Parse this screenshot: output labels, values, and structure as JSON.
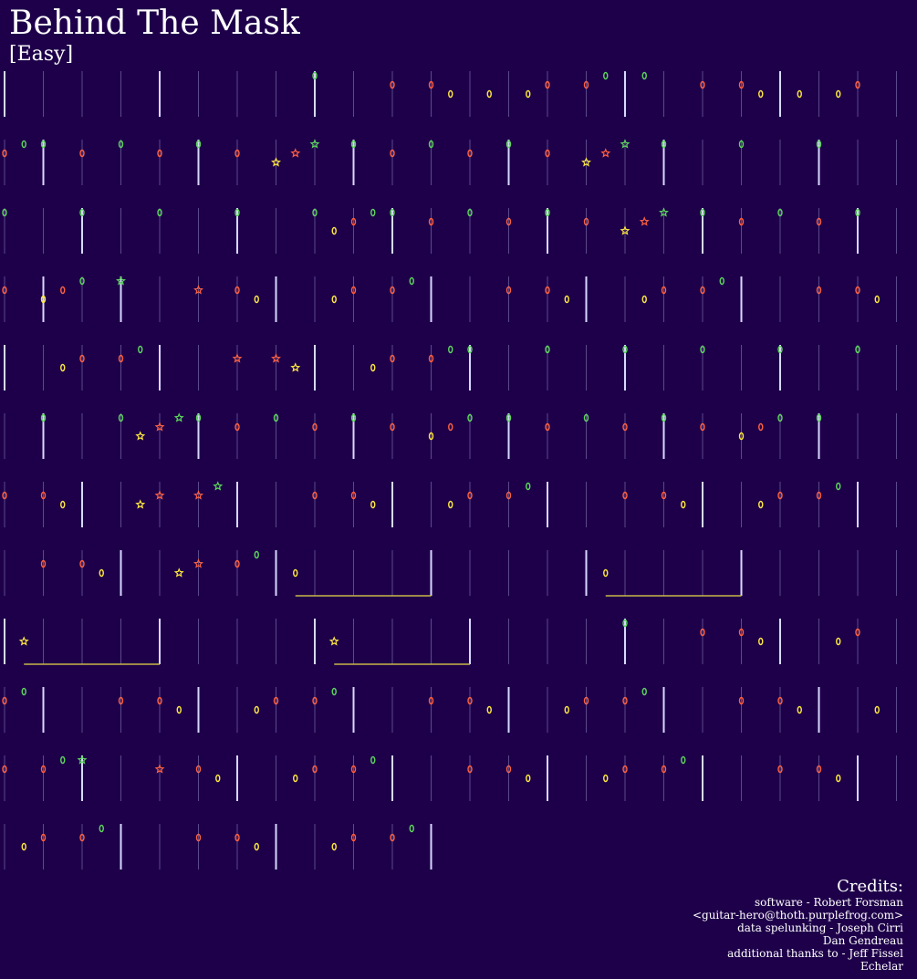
{
  "song": {
    "title": "Behind The Mask",
    "difficulty": "[Easy]"
  },
  "colors": {
    "background": "#1e004a",
    "beat_line": "#5a4a8a",
    "measure_line": "#d8d8ff",
    "green": "#5cd65c",
    "red": "#ff6040",
    "yellow": "#ffe840",
    "sustain": "#c8b848"
  },
  "credits": {
    "heading": "Credits:",
    "lines": [
      "software - Robert Forsman",
      "<guitar-hero@thoth.purplefrog.com>",
      "data spelunking - Joseph Cirri",
      "Dan Gendreau",
      "additional thanks to - Jeff Fissel",
      "Echelar"
    ]
  },
  "note_legend": {
    "green": "G",
    "red": "R",
    "yellow": "Y"
  },
  "chart_data": {
    "type": "note-chart",
    "beats_per_row": 24,
    "beats_per_measure": 4,
    "total_beats": 268,
    "rows": [
      {
        "measure_beats": [
          0,
          4,
          8,
          16,
          20,
          24
        ],
        "notes": [
          [
            "G",
            8
          ],
          [
            "R",
            10
          ],
          [
            "R",
            11
          ],
          [
            "Y",
            11.5
          ],
          [
            "Y",
            12.5
          ],
          [
            "Y",
            13.5
          ],
          [
            "R",
            14
          ],
          [
            "G",
            15.5
          ],
          [
            "R",
            15
          ],
          [
            "G",
            16.5
          ],
          [
            "R",
            18
          ],
          [
            "R",
            19
          ],
          [
            "Y",
            19.5
          ],
          [
            "Y",
            20.5
          ],
          [
            "Y",
            21.5
          ],
          [
            "R",
            22
          ]
        ],
        "sustains": []
      },
      {
        "measure_beats": [
          1,
          5,
          9,
          13,
          17,
          21
        ],
        "notes": [
          [
            "R",
            0
          ],
          [
            "G",
            0.5
          ],
          [
            "G",
            1
          ],
          [
            "R",
            2
          ],
          [
            "G",
            3
          ],
          [
            "R",
            4
          ],
          [
            "G",
            5
          ],
          [
            "R",
            6
          ],
          [
            "Y",
            7
          ],
          [
            "R",
            7.5
          ],
          [
            "G",
            8
          ],
          [
            "G",
            9
          ],
          [
            "R",
            10
          ],
          [
            "G",
            11
          ],
          [
            "R",
            12
          ],
          [
            "G",
            13
          ],
          [
            "R",
            14
          ],
          [
            "Y",
            15
          ],
          [
            "R",
            15.5
          ],
          [
            "G",
            16
          ],
          [
            "G",
            17
          ],
          [
            "G",
            19
          ],
          [
            "G",
            21
          ]
        ],
        "sustains": [],
        "stars": [
          7,
          7.5,
          8,
          15,
          15.5,
          16
        ]
      },
      {
        "measure_beats": [
          2,
          6,
          10,
          14,
          18,
          22
        ],
        "notes": [
          [
            "G",
            0
          ],
          [
            "G",
            2
          ],
          [
            "G",
            4
          ],
          [
            "G",
            6
          ],
          [
            "G",
            8
          ],
          [
            "Y",
            8.5
          ],
          [
            "R",
            9
          ],
          [
            "G",
            9.5
          ],
          [
            "G",
            10
          ],
          [
            "R",
            11
          ],
          [
            "G",
            12
          ],
          [
            "R",
            13
          ],
          [
            "G",
            14
          ],
          [
            "R",
            15
          ],
          [
            "Y",
            16
          ],
          [
            "R",
            16.5
          ],
          [
            "G",
            17
          ],
          [
            "G",
            18
          ],
          [
            "R",
            19
          ],
          [
            "G",
            20
          ],
          [
            "R",
            21
          ],
          [
            "G",
            22
          ]
        ],
        "sustains": [],
        "stars": [
          16,
          16.5,
          17
        ]
      },
      {
        "measure_beats": [
          1,
          3,
          7,
          11,
          15,
          19
        ],
        "notes": [
          [
            "R",
            0
          ],
          [
            "Y",
            1
          ],
          [
            "R",
            1.5
          ],
          [
            "G",
            2
          ],
          [
            "G",
            3
          ],
          [
            "R",
            5
          ],
          [
            "R",
            6
          ],
          [
            "Y",
            6.5
          ],
          [
            "Y",
            8.5
          ],
          [
            "R",
            9
          ],
          [
            "R",
            10
          ],
          [
            "G",
            10.5
          ],
          [
            "R",
            13
          ],
          [
            "R",
            14
          ],
          [
            "Y",
            14.5
          ],
          [
            "Y",
            16.5
          ],
          [
            "R",
            17
          ],
          [
            "R",
            18
          ],
          [
            "G",
            18.5
          ],
          [
            "R",
            21
          ],
          [
            "R",
            22
          ],
          [
            "Y",
            22.5
          ]
        ],
        "sustains": [],
        "stars": [
          3,
          5
        ]
      },
      {
        "measure_beats": [
          0,
          4,
          8,
          12,
          16,
          20
        ],
        "notes": [
          [
            "Y",
            1.5
          ],
          [
            "R",
            2
          ],
          [
            "R",
            3
          ],
          [
            "G",
            3.5
          ],
          [
            "R",
            6
          ],
          [
            "R",
            7
          ],
          [
            "Y",
            7.5
          ],
          [
            "Y",
            9.5
          ],
          [
            "R",
            10
          ],
          [
            "R",
            11
          ],
          [
            "G",
            11.5
          ],
          [
            "G",
            12
          ],
          [
            "G",
            14
          ],
          [
            "G",
            16
          ],
          [
            "G",
            18
          ],
          [
            "G",
            20
          ],
          [
            "G",
            22
          ]
        ],
        "sustains": [],
        "stars": [
          6,
          7,
          7.5
        ]
      },
      {
        "measure_beats": [
          1,
          5,
          9,
          13,
          17,
          21
        ],
        "notes": [
          [
            "G",
            1
          ],
          [
            "G",
            3
          ],
          [
            "Y",
            3.5
          ],
          [
            "R",
            4
          ],
          [
            "G",
            4.5
          ],
          [
            "G",
            5
          ],
          [
            "R",
            6
          ],
          [
            "G",
            7
          ],
          [
            "R",
            8
          ],
          [
            "G",
            9
          ],
          [
            "R",
            10
          ],
          [
            "Y",
            11
          ],
          [
            "R",
            11.5
          ],
          [
            "G",
            12
          ],
          [
            "G",
            13
          ],
          [
            "R",
            14
          ],
          [
            "G",
            15
          ],
          [
            "R",
            16
          ],
          [
            "G",
            17
          ],
          [
            "R",
            18
          ],
          [
            "Y",
            19
          ],
          [
            "R",
            19.5
          ],
          [
            "G",
            20
          ],
          [
            "G",
            21
          ]
        ],
        "sustains": [],
        "stars": [
          3.5,
          4,
          4.5
        ]
      },
      {
        "measure_beats": [
          2,
          6,
          10,
          14,
          18,
          22
        ],
        "notes": [
          [
            "R",
            0
          ],
          [
            "R",
            1
          ],
          [
            "Y",
            1.5
          ],
          [
            "Y",
            3.5
          ],
          [
            "R",
            4
          ],
          [
            "R",
            5
          ],
          [
            "G",
            5.5
          ],
          [
            "R",
            8
          ],
          [
            "R",
            9
          ],
          [
            "Y",
            9.5
          ],
          [
            "Y",
            11.5
          ],
          [
            "R",
            12
          ],
          [
            "R",
            13
          ],
          [
            "G",
            13.5
          ],
          [
            "R",
            16
          ],
          [
            "R",
            17
          ],
          [
            "Y",
            17.5
          ],
          [
            "Y",
            19.5
          ],
          [
            "R",
            20
          ],
          [
            "R",
            21
          ],
          [
            "G",
            21.5
          ]
        ],
        "sustains": [],
        "stars": [
          3.5,
          4,
          5,
          5.5
        ]
      },
      {
        "measure_beats": [
          3,
          7,
          11,
          15,
          19
        ],
        "notes": [
          [
            "R",
            1
          ],
          [
            "R",
            2
          ],
          [
            "Y",
            2.5
          ],
          [
            "Y",
            4.5
          ],
          [
            "R",
            5
          ],
          [
            "R",
            6
          ],
          [
            "G",
            6.5
          ],
          [
            "Y",
            7.5
          ],
          [
            "Y",
            15.5
          ]
        ],
        "sustains": [
          [
            7.5,
            11
          ],
          [
            15.5,
            19
          ]
        ],
        "stars": [
          4.5,
          5
        ]
      },
      {
        "measure_beats": [
          0,
          4,
          8,
          12,
          16,
          20
        ],
        "notes": [
          [
            "Y",
            0.5
          ],
          [
            "Y",
            8.5
          ],
          [
            "G",
            16
          ],
          [
            "R",
            18
          ],
          [
            "R",
            19
          ],
          [
            "Y",
            19.5
          ],
          [
            "Y",
            21.5
          ],
          [
            "R",
            22
          ]
        ],
        "sustains": [
          [
            0.5,
            4
          ],
          [
            8.5,
            12
          ]
        ],
        "stars": [
          0.5,
          8.5
        ]
      },
      {
        "measure_beats": [
          1,
          5,
          9,
          13,
          17,
          21
        ],
        "notes": [
          [
            "R",
            0
          ],
          [
            "G",
            0.5
          ],
          [
            "R",
            3
          ],
          [
            "R",
            4
          ],
          [
            "Y",
            4.5
          ],
          [
            "Y",
            6.5
          ],
          [
            "R",
            7
          ],
          [
            "R",
            8
          ],
          [
            "G",
            8.5
          ],
          [
            "R",
            11
          ],
          [
            "R",
            12
          ],
          [
            "Y",
            12.5
          ],
          [
            "Y",
            14.5
          ],
          [
            "R",
            15
          ],
          [
            "R",
            16
          ],
          [
            "G",
            16.5
          ],
          [
            "R",
            19
          ],
          [
            "R",
            20
          ],
          [
            "Y",
            20.5
          ],
          [
            "Y",
            22.5
          ]
        ],
        "sustains": []
      },
      {
        "measure_beats": [
          2,
          6,
          10,
          14,
          18,
          22
        ],
        "notes": [
          [
            "R",
            0
          ],
          [
            "R",
            1
          ],
          [
            "G",
            1.5
          ],
          [
            "G",
            2
          ],
          [
            "R",
            4
          ],
          [
            "R",
            5
          ],
          [
            "Y",
            5.5
          ],
          [
            "Y",
            7.5
          ],
          [
            "R",
            8
          ],
          [
            "R",
            9
          ],
          [
            "G",
            9.5
          ],
          [
            "R",
            12
          ],
          [
            "R",
            13
          ],
          [
            "Y",
            13.5
          ],
          [
            "Y",
            15.5
          ],
          [
            "R",
            16
          ],
          [
            "R",
            17
          ],
          [
            "G",
            17.5
          ],
          [
            "R",
            20
          ],
          [
            "R",
            21
          ],
          [
            "Y",
            21.5
          ]
        ],
        "sustains": [],
        "stars": [
          2,
          4
        ]
      },
      {
        "measure_beats": [
          3,
          7,
          11
        ],
        "notes": [
          [
            "Y",
            0.5
          ],
          [
            "R",
            1
          ],
          [
            "R",
            2
          ],
          [
            "G",
            2.5
          ],
          [
            "R",
            5
          ],
          [
            "R",
            6
          ],
          [
            "Y",
            6.5
          ],
          [
            "Y",
            8.5
          ],
          [
            "R",
            9
          ],
          [
            "R",
            10
          ],
          [
            "G",
            10.5
          ]
        ],
        "sustains": [],
        "beats": 11
      }
    ]
  }
}
